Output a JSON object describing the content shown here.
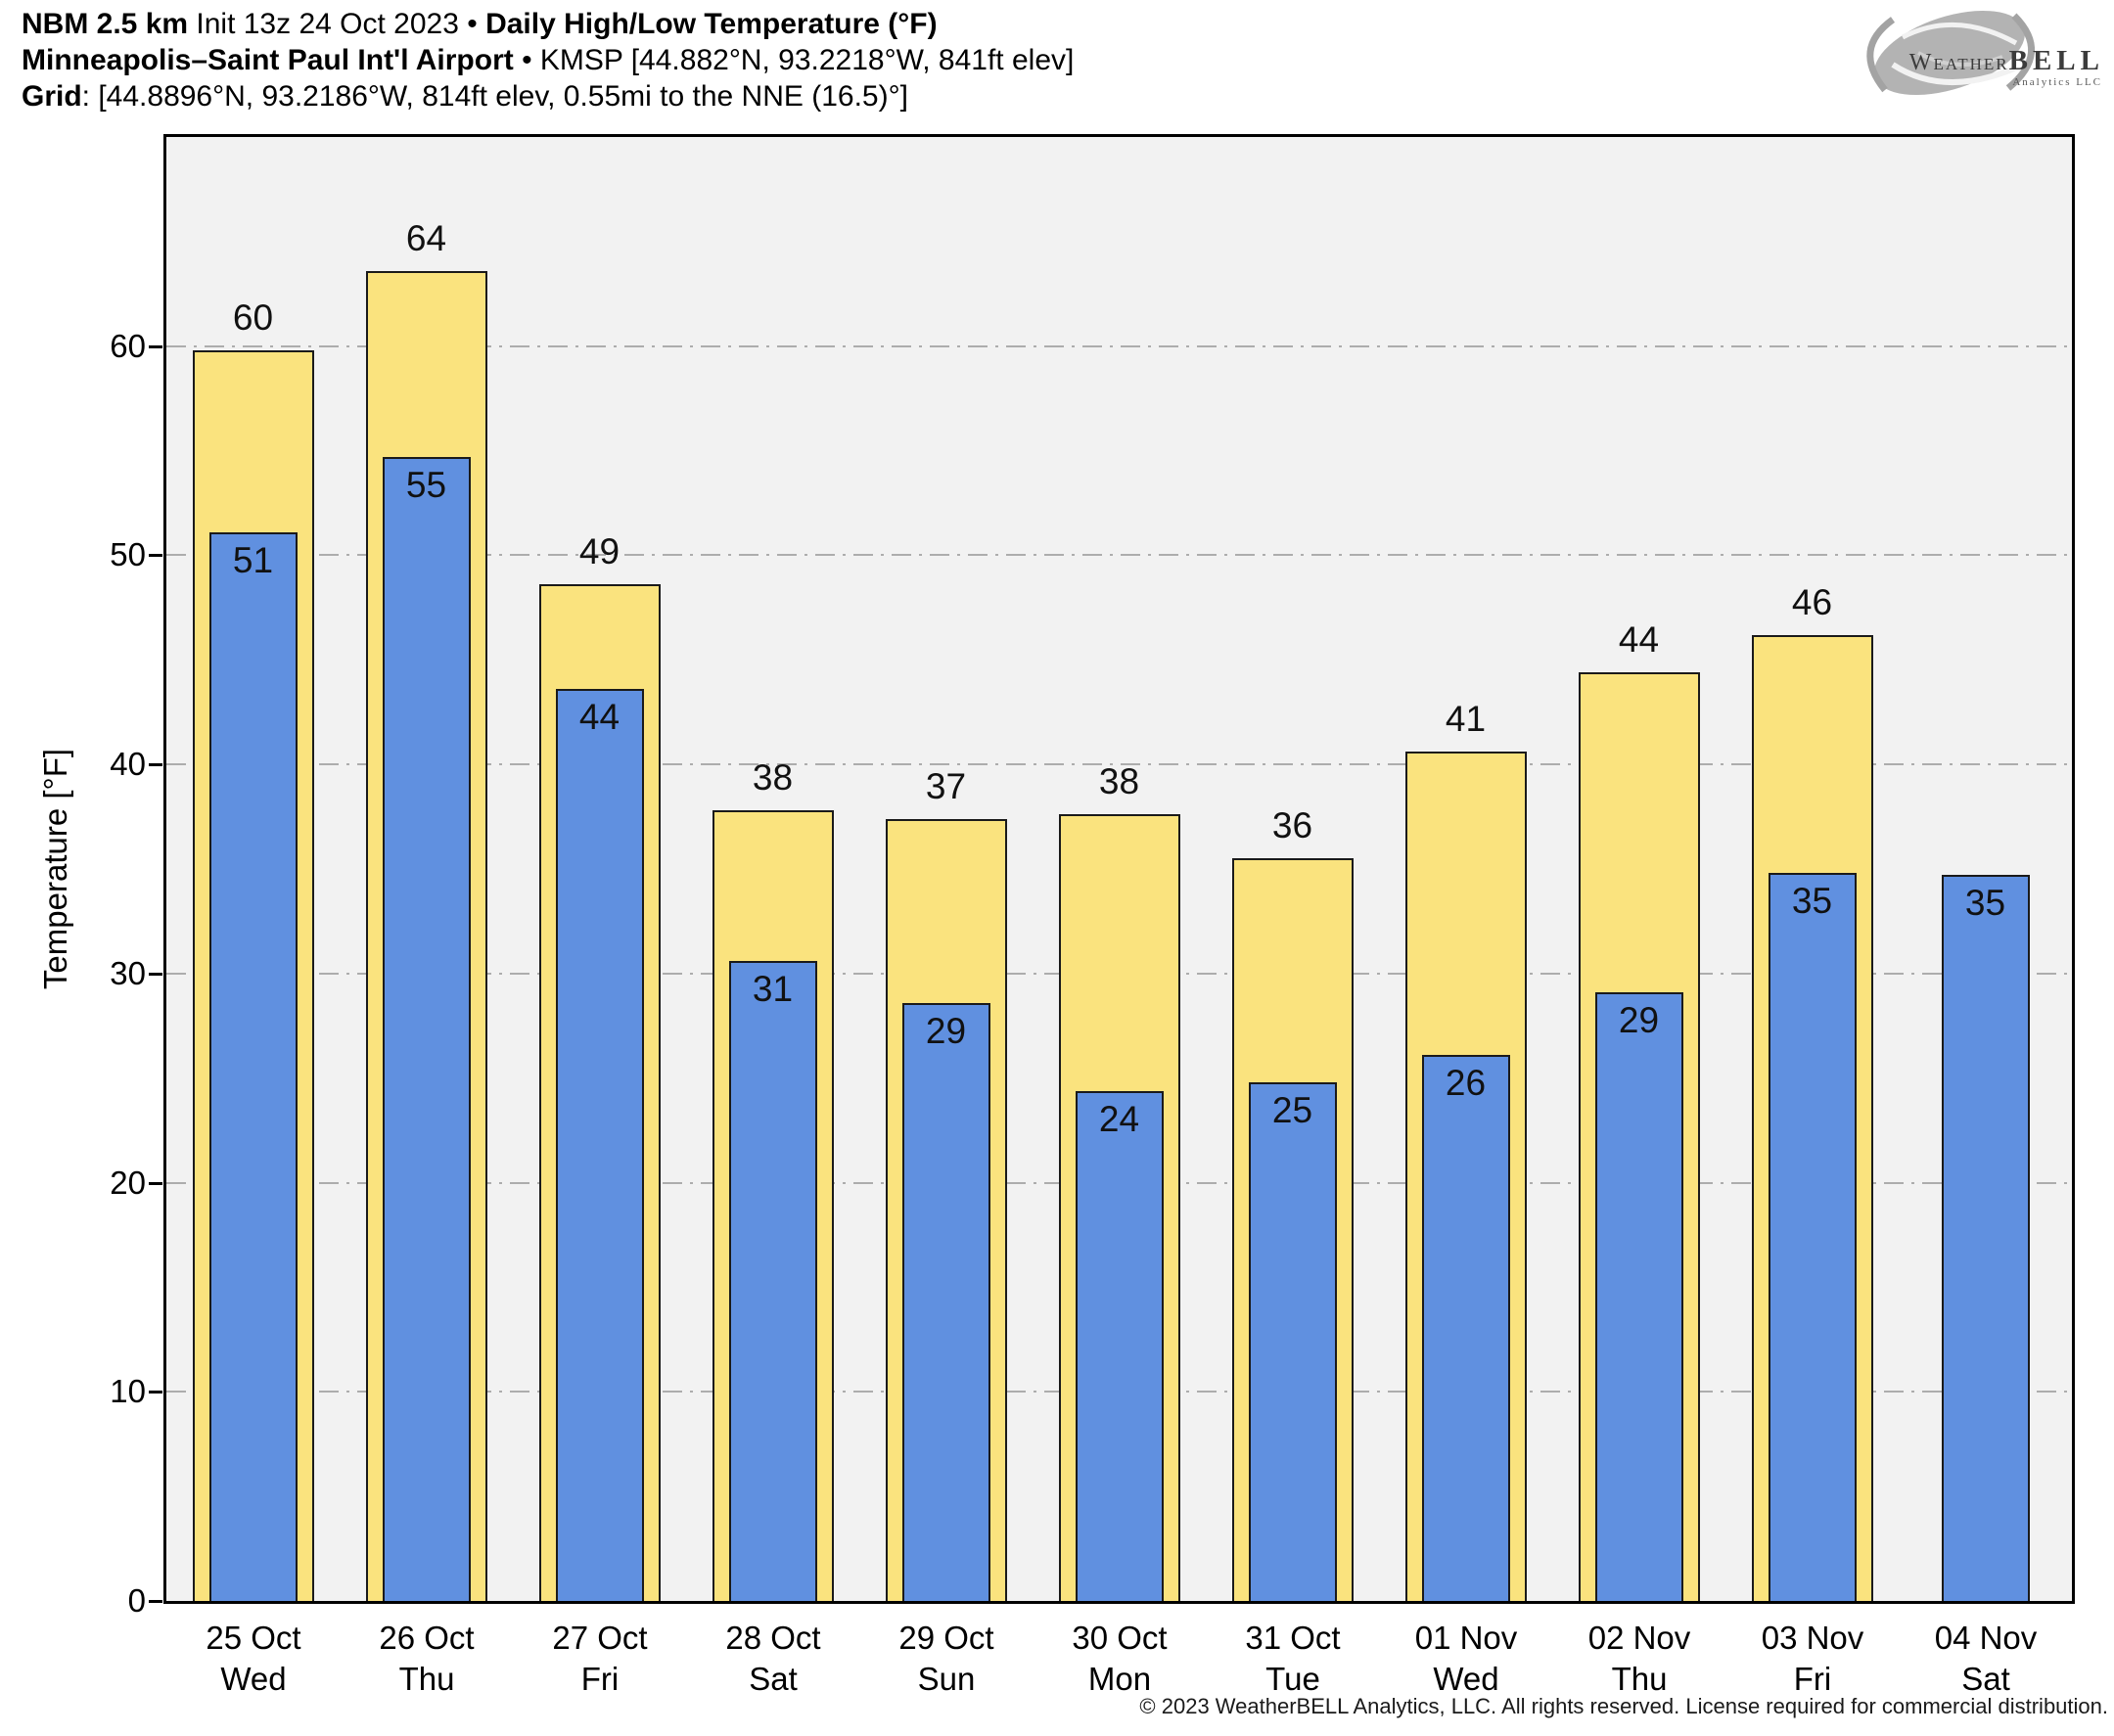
{
  "header": {
    "line1": {
      "model": "NBM 2.5 km",
      "init": " Init 13z 24 Oct 2023 • ",
      "product": "Daily High/Low Temperature (°F)"
    },
    "line2": {
      "station": "Minneapolis–Saint Paul Int'l Airport",
      "details": " • KMSP [44.882°N, 93.2218°W, 841ft elev]"
    },
    "line3": {
      "label": "Grid",
      "details": ": [44.8896°N, 93.2186°W, 814ft elev, 0.55mi to the NNE (16.5)°]"
    }
  },
  "logo": {
    "weather": "Weather",
    "bell": "BELL",
    "subtext": "Analytics LLC"
  },
  "footer": {
    "copyright": "© 2023 WeatherBELL Analytics, LLC. All rights reserved. License required for commercial distribution."
  },
  "colors": {
    "high_bar": "#FAE37E",
    "low_bar": "#6090E0",
    "bar_border": "#1A1A1A",
    "plot_bg": "#F2F2F2",
    "grid_line": "#ADADAD",
    "axis": "#000000"
  },
  "chart_data": {
    "type": "bar",
    "title": "Daily High/Low Temperature (°F)",
    "ylabel": "Temperature [°F]",
    "ylim": [
      0,
      70
    ],
    "yticks": [
      0,
      10,
      20,
      30,
      40,
      50,
      60
    ],
    "grid": "horizontal dash-dot, 10°F intervals",
    "legend_position": "none",
    "series_names": [
      "High (yellow, wide bar)",
      "Low (blue, inner bar)"
    ],
    "days": [
      {
        "date": "25 Oct",
        "weekday": "Wed",
        "high": 59.8,
        "high_label": "60",
        "low": 51.1,
        "low_label": "51"
      },
      {
        "date": "26 Oct",
        "weekday": "Thu",
        "high": 63.6,
        "high_label": "64",
        "low": 54.7,
        "low_label": "55"
      },
      {
        "date": "27 Oct",
        "weekday": "Fri",
        "high": 48.6,
        "high_label": "49",
        "low": 43.6,
        "low_label": "44"
      },
      {
        "date": "28 Oct",
        "weekday": "Sat",
        "high": 37.8,
        "high_label": "38",
        "low": 30.6,
        "low_label": "31"
      },
      {
        "date": "29 Oct",
        "weekday": "Sun",
        "high": 37.4,
        "high_label": "37",
        "low": 28.6,
        "low_label": "29"
      },
      {
        "date": "30 Oct",
        "weekday": "Mon",
        "high": 37.6,
        "high_label": "38",
        "low": 24.4,
        "low_label": "24"
      },
      {
        "date": "31 Oct",
        "weekday": "Tue",
        "high": 35.5,
        "high_label": "36",
        "low": 24.8,
        "low_label": "25"
      },
      {
        "date": "01 Nov",
        "weekday": "Wed",
        "high": 40.6,
        "high_label": "41",
        "low": 26.1,
        "low_label": "26"
      },
      {
        "date": "02 Nov",
        "weekday": "Thu",
        "high": 44.4,
        "high_label": "44",
        "low": 29.1,
        "low_label": "29"
      },
      {
        "date": "03 Nov",
        "weekday": "Fri",
        "high": 46.2,
        "high_label": "46",
        "low": 34.8,
        "low_label": "35"
      },
      {
        "date": "04 Nov",
        "weekday": "Sat",
        "high": null,
        "high_label": null,
        "low": 34.7,
        "low_label": "35"
      }
    ]
  }
}
